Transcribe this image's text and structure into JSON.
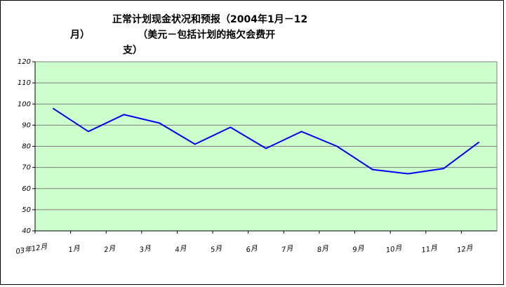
{
  "chart_data": {
    "type": "line",
    "title": [
      "正常计划现金状况和预报（2004年1月－12",
      "月）              （美元－包括计划的拖欠会费开",
      "支）"
    ],
    "categories": [
      "03年12月",
      "1月",
      "2月",
      "3月",
      "4月",
      "5月",
      "6月",
      "7月",
      "8月",
      "9月",
      "10月",
      "11月",
      "12月"
    ],
    "series": [
      {
        "name": null,
        "color": "#0000ff",
        "values": [
          98,
          87,
          95,
          91,
          81,
          89,
          79,
          87,
          80,
          69,
          67,
          69.5,
          82
        ]
      }
    ],
    "ylim": [
      40,
      120
    ],
    "yticks": [
      40,
      50,
      60,
      70,
      80,
      90,
      100,
      110,
      120
    ],
    "grid": true,
    "plot_background": "#ccffcc"
  }
}
